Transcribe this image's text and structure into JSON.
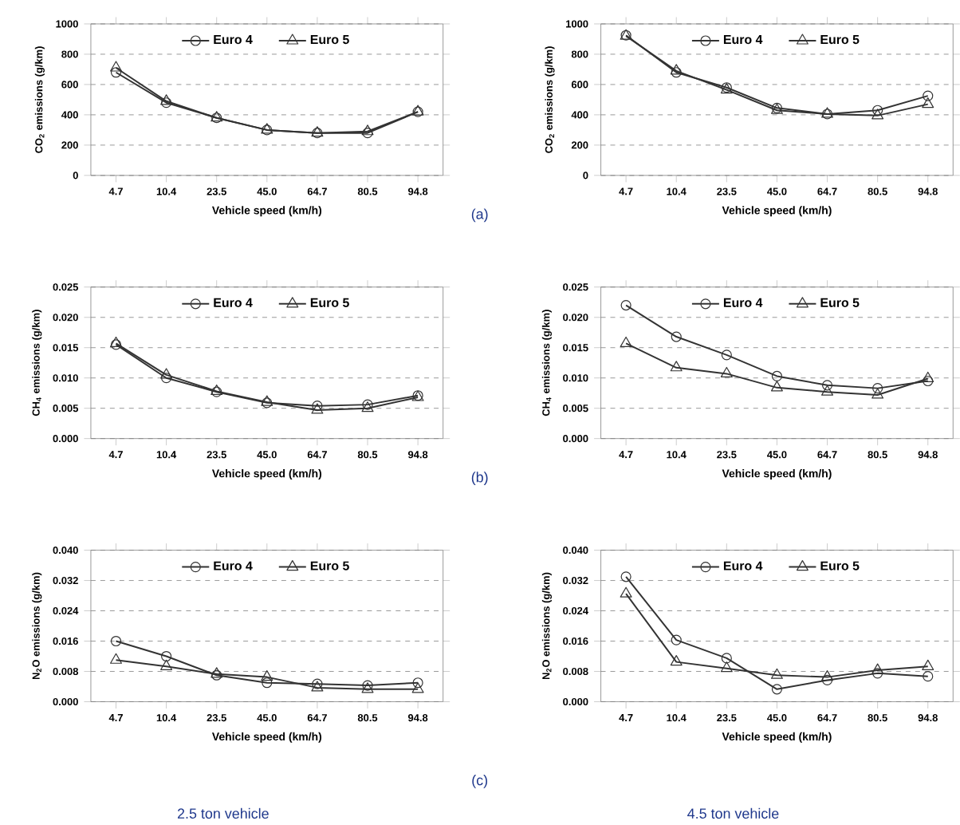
{
  "chart_data": [
    {
      "type": "line",
      "xlabel": "Vehicle speed  (km/h)",
      "ylabel": "CO$_{2}$ emissions (g/km)",
      "categories": [
        "4.7",
        "10.4",
        "23.5",
        "45.0",
        "64.7",
        "80.5",
        "94.8"
      ],
      "ylim": [
        0,
        1000
      ],
      "yticks": [
        0,
        200,
        400,
        600,
        800,
        1000
      ],
      "grid": "y",
      "legend": "top",
      "line_style": "solid",
      "annotations": [
        "(a)"
      ],
      "series": [
        {
          "name": "Euro 4",
          "color": "#333333",
          "marker": "circle",
          "values": [
            680,
            480,
            380,
            300,
            280,
            280,
            420
          ]
        },
        {
          "name": "Euro 5",
          "color": "#333333",
          "marker": "triangle",
          "values": [
            710,
            490,
            380,
            300,
            280,
            290,
            420
          ]
        }
      ]
    },
    {
      "type": "line",
      "xlabel": "Vehicle speed  (km/h)",
      "ylabel": "CO$_{2}$ emissions (g/km)",
      "categories": [
        "4.7",
        "10.4",
        "23.5",
        "45.0",
        "64.7",
        "80.5",
        "94.8"
      ],
      "ylim": [
        0,
        1000
      ],
      "yticks": [
        0,
        200,
        400,
        600,
        800,
        1000
      ],
      "grid": "y",
      "legend": "top",
      "line_style": "solid",
      "series": [
        {
          "name": "Euro 4",
          "color": "#333333",
          "marker": "circle",
          "values": [
            925,
            680,
            580,
            445,
            405,
            430,
            525
          ]
        },
        {
          "name": "Euro 5",
          "color": "#333333",
          "marker": "triangle",
          "values": [
            920,
            690,
            565,
            430,
            405,
            395,
            470
          ]
        }
      ]
    },
    {
      "type": "line",
      "xlabel": "Vehicle speed  (km/h)",
      "ylabel": "CH$_{4}$ emissions (g/km)",
      "categories": [
        "4.7",
        "10.4",
        "23.5",
        "45.0",
        "64.7",
        "80.5",
        "94.8"
      ],
      "ylim": [
        0,
        0.025
      ],
      "yticks": [
        {
          "value": 0,
          "label": "0.000"
        },
        {
          "value": 0.005,
          "label": "0.005"
        },
        {
          "value": 0.01,
          "label": "0.010"
        },
        {
          "value": 0.015,
          "label": "0.015"
        },
        {
          "value": 0.02,
          "label": "0.020"
        },
        {
          "value": 0.025,
          "label": "0.025"
        }
      ],
      "grid": "y",
      "legend": "top",
      "line_style": "solid",
      "annotations": [
        "(b)"
      ],
      "series": [
        {
          "name": "Euro 4",
          "color": "#333333",
          "marker": "circle",
          "values": [
            0.0155,
            0.01,
            0.0077,
            0.0059,
            0.0054,
            0.0056,
            0.0071
          ]
        },
        {
          "name": "Euro 5",
          "color": "#333333",
          "marker": "triangle",
          "values": [
            0.0157,
            0.0105,
            0.0078,
            0.006,
            0.0047,
            0.005,
            0.0068
          ]
        }
      ]
    },
    {
      "type": "line",
      "xlabel": "Vehicle speed  (km/h)",
      "ylabel": "CH$_{4}$ emissions (g/km)",
      "categories": [
        "4.7",
        "10.4",
        "23.5",
        "45.0",
        "64.7",
        "80.5",
        "94.8"
      ],
      "ylim": [
        0,
        0.025
      ],
      "yticks": [
        {
          "value": 0,
          "label": "0.000"
        },
        {
          "value": 0.005,
          "label": "0.005"
        },
        {
          "value": 0.01,
          "label": "0.010"
        },
        {
          "value": 0.015,
          "label": "0.015"
        },
        {
          "value": 0.02,
          "label": "0.020"
        },
        {
          "value": 0.025,
          "label": "0.025"
        }
      ],
      "grid": "y",
      "legend": "top",
      "line_style": "solid",
      "series": [
        {
          "name": "Euro 4",
          "color": "#333333",
          "marker": "circle",
          "values": [
            0.022,
            0.0168,
            0.0138,
            0.0103,
            0.0088,
            0.0083,
            0.0095
          ]
        },
        {
          "name": "Euro 5",
          "color": "#333333",
          "marker": "triangle",
          "values": [
            0.0157,
            0.0117,
            0.0107,
            0.0084,
            0.0077,
            0.0072,
            0.0099
          ]
        }
      ]
    },
    {
      "type": "line",
      "xlabel": "Vehicle speed  (km/h)",
      "ylabel": "N$_{2}$O emissions (g/km)",
      "categories": [
        "4.7",
        "10.4",
        "23.5",
        "45.0",
        "64.7",
        "80.5",
        "94.8"
      ],
      "ylim": [
        0,
        0.04
      ],
      "yticks": [
        {
          "value": 0,
          "label": "0.000"
        },
        {
          "value": 0.008,
          "label": "0.008"
        },
        {
          "value": 0.016,
          "label": "0.016"
        },
        {
          "value": 0.024,
          "label": "0.024"
        },
        {
          "value": 0.032,
          "label": "0.032"
        },
        {
          "value": 0.04,
          "label": "0.040"
        }
      ],
      "grid": "y",
      "legend": "top",
      "line_style": "solid",
      "annotations": [
        "(c)",
        "2.5 ton vehicle"
      ],
      "series": [
        {
          "name": "Euro 4",
          "color": "#333333",
          "marker": "circle",
          "values": [
            0.016,
            0.012,
            0.007,
            0.005,
            0.0047,
            0.0043,
            0.005
          ]
        },
        {
          "name": "Euro 5",
          "color": "#333333",
          "marker": "triangle",
          "values": [
            0.011,
            0.0093,
            0.0073,
            0.0065,
            0.0037,
            0.0033,
            0.0033
          ]
        }
      ]
    },
    {
      "type": "line",
      "xlabel": "Vehicle speed  (km/h)",
      "ylabel": "N$_{2}$O emissions (g/km)",
      "categories": [
        "4.7",
        "10.4",
        "23.5",
        "45.0",
        "64.7",
        "80.5",
        "94.8"
      ],
      "ylim": [
        0,
        0.04
      ],
      "yticks": [
        {
          "value": 0,
          "label": "0.000"
        },
        {
          "value": 0.008,
          "label": "0.008"
        },
        {
          "value": 0.016,
          "label": "0.016"
        },
        {
          "value": 0.024,
          "label": "0.024"
        },
        {
          "value": 0.032,
          "label": "0.032"
        },
        {
          "value": 0.04,
          "label": "0.040"
        }
      ],
      "grid": "y",
      "legend": "top",
      "line_style": "solid",
      "annotations": [
        "4.5 ton vehicle"
      ],
      "series": [
        {
          "name": "Euro 4",
          "color": "#333333",
          "marker": "circle",
          "values": [
            0.033,
            0.0163,
            0.0115,
            0.0033,
            0.0057,
            0.0075,
            0.0067
          ]
        },
        {
          "name": "Euro 5",
          "color": "#333333",
          "marker": "triangle",
          "values": [
            0.0285,
            0.0105,
            0.0088,
            0.007,
            0.0065,
            0.0083,
            0.0093
          ]
        }
      ]
    }
  ]
}
